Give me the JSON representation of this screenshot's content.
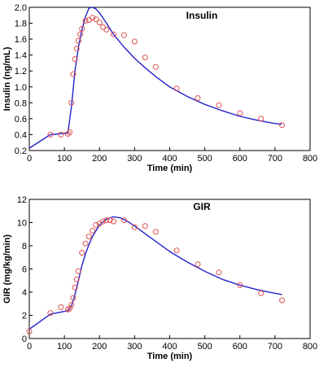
{
  "colors": {
    "model_line": "#2222cc",
    "observed_marker": "#e05050",
    "axis": "#000000",
    "background": "#ffffff"
  },
  "chart_data": [
    {
      "type": "scatter",
      "title": "Insulin",
      "xlabel": "Time (min)",
      "ylabel": "Insulin (ng/mL)",
      "xlim": [
        0,
        800
      ],
      "ylim": [
        0.2,
        2.0
      ],
      "grid": false,
      "xticks": [
        "0",
        "100",
        "200",
        "300",
        "400",
        "500",
        "600",
        "700",
        "800"
      ],
      "yticks": [
        "0.2",
        "0.4",
        "0.6",
        "0.8",
        "1.0",
        "1.2",
        "1.4",
        "1.6",
        "1.8",
        "2.0"
      ],
      "xtick_values": [
        0,
        100,
        200,
        300,
        400,
        500,
        600,
        700,
        800
      ],
      "ytick_values": [
        0.2,
        0.4,
        0.6,
        0.8,
        1.0,
        1.2,
        1.4,
        1.6,
        1.8,
        2.0
      ],
      "series": [
        {
          "kind": "line",
          "x": [
            0,
            60,
            110,
            120,
            130,
            140,
            150,
            160,
            170,
            180,
            190,
            200,
            220,
            240,
            270,
            300,
            330,
            360,
            400,
            450,
            500,
            550,
            600,
            650,
            700,
            720
          ],
          "y": [
            0.23,
            0.4,
            0.42,
            0.75,
            1.2,
            1.5,
            1.72,
            1.88,
            1.99,
            2.0,
            1.98,
            1.93,
            1.8,
            1.66,
            1.5,
            1.36,
            1.24,
            1.13,
            1.0,
            0.88,
            0.78,
            0.7,
            0.63,
            0.58,
            0.54,
            0.53
          ]
        },
        {
          "kind": "markers",
          "x": [
            60,
            90,
            110,
            115,
            120,
            125,
            130,
            135,
            140,
            145,
            150,
            160,
            170,
            180,
            190,
            200,
            210,
            220,
            240,
            270,
            300,
            330,
            360,
            420,
            480,
            540,
            600,
            660,
            720
          ],
          "y": [
            0.4,
            0.4,
            0.41,
            0.43,
            0.8,
            1.16,
            1.35,
            1.48,
            1.58,
            1.66,
            1.73,
            1.83,
            1.84,
            1.87,
            1.85,
            1.81,
            1.75,
            1.72,
            1.66,
            1.65,
            1.57,
            1.37,
            1.25,
            0.98,
            0.86,
            0.77,
            0.67,
            0.6,
            0.52
          ]
        }
      ]
    },
    {
      "type": "scatter",
      "title": "GIR",
      "xlabel": "Time (min)",
      "ylabel": "GIR (mg/kg/min)",
      "xlim": [
        0,
        800
      ],
      "ylim": [
        0,
        12
      ],
      "grid": false,
      "xticks": [
        "0",
        "100",
        "200",
        "300",
        "400",
        "500",
        "600",
        "700",
        "800"
      ],
      "yticks": [
        "0",
        "2",
        "4",
        "6",
        "8",
        "10",
        "12"
      ],
      "xtick_values": [
        0,
        100,
        200,
        300,
        400,
        500,
        600,
        700,
        800
      ],
      "ytick_values": [
        0,
        2,
        4,
        6,
        8,
        10,
        12
      ],
      "series": [
        {
          "kind": "line",
          "x": [
            0,
            60,
            110,
            120,
            130,
            140,
            150,
            160,
            170,
            180,
            200,
            220,
            240,
            260,
            280,
            300,
            350,
            400,
            450,
            500,
            550,
            600,
            650,
            700,
            720
          ],
          "y": [
            0.8,
            2.1,
            2.4,
            2.8,
            3.8,
            5.0,
            6.3,
            7.3,
            8.1,
            8.8,
            9.8,
            10.3,
            10.5,
            10.4,
            10.1,
            9.7,
            8.6,
            7.5,
            6.6,
            5.8,
            5.1,
            4.6,
            4.2,
            3.9,
            3.8
          ]
        },
        {
          "kind": "markers",
          "x": [
            0,
            60,
            90,
            110,
            115,
            120,
            125,
            130,
            135,
            140,
            150,
            160,
            170,
            180,
            190,
            200,
            210,
            220,
            230,
            240,
            270,
            300,
            330,
            360,
            420,
            480,
            540,
            600,
            660,
            720
          ],
          "y": [
            0.6,
            2.2,
            2.7,
            2.5,
            2.6,
            2.9,
            3.5,
            4.4,
            5.1,
            5.8,
            7.4,
            8.2,
            8.8,
            9.3,
            9.8,
            9.9,
            10.1,
            10.2,
            10.2,
            10.1,
            10.2,
            9.6,
            9.7,
            9.2,
            7.6,
            6.4,
            5.7,
            4.6,
            3.9,
            3.3
          ]
        }
      ]
    }
  ]
}
